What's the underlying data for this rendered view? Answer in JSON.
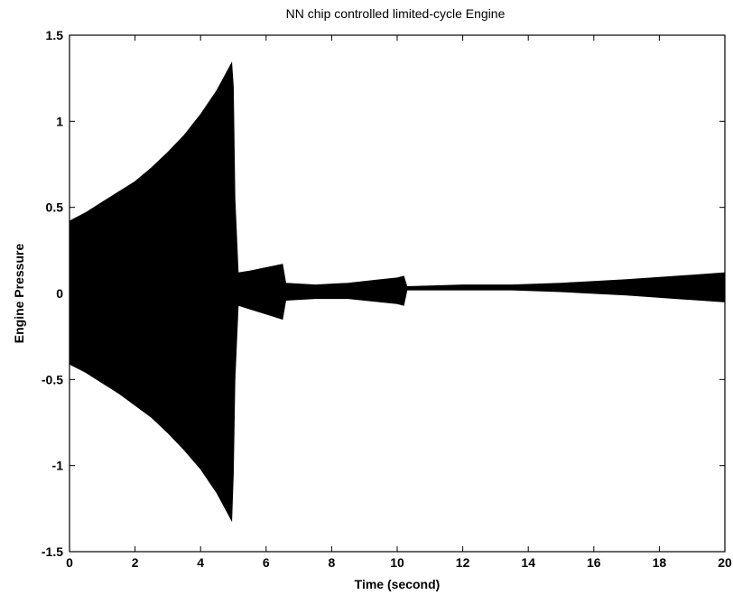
{
  "chart_data": {
    "type": "area",
    "title": "NN chip controlled limited-cycle Engine",
    "xlabel": "Time (second)",
    "ylabel": "Engine Pressure",
    "xlim": [
      0,
      20
    ],
    "ylim": [
      -1.5,
      1.5
    ],
    "xticks": [
      "0",
      "2",
      "4",
      "6",
      "8",
      "10",
      "12",
      "14",
      "16",
      "18",
      "20"
    ],
    "yticks": [
      "1.5",
      "1",
      "0.5",
      "0",
      "-0.5",
      "-1",
      "-1.5"
    ],
    "grid": false,
    "fill_color": "#000000",
    "series": [
      {
        "envelope": [
          {
            "x": 0.0,
            "upper": 0.42,
            "lower": -0.41
          },
          {
            "x": 0.5,
            "upper": 0.47,
            "lower": -0.46
          },
          {
            "x": 1.0,
            "upper": 0.53,
            "lower": -0.52
          },
          {
            "x": 1.5,
            "upper": 0.59,
            "lower": -0.58
          },
          {
            "x": 2.0,
            "upper": 0.65,
            "lower": -0.65
          },
          {
            "x": 2.5,
            "upper": 0.73,
            "lower": -0.72
          },
          {
            "x": 3.0,
            "upper": 0.82,
            "lower": -0.81
          },
          {
            "x": 3.5,
            "upper": 0.92,
            "lower": -0.91
          },
          {
            "x": 4.0,
            "upper": 1.04,
            "lower": -1.02
          },
          {
            "x": 4.5,
            "upper": 1.18,
            "lower": -1.16
          },
          {
            "x": 4.95,
            "upper": 1.34,
            "lower": -1.32
          },
          {
            "x": 5.0,
            "upper": 1.2,
            "lower": -1.05
          },
          {
            "x": 5.05,
            "upper": 0.55,
            "lower": -0.5
          },
          {
            "x": 5.15,
            "upper": 0.12,
            "lower": -0.07
          },
          {
            "x": 5.5,
            "upper": 0.13,
            "lower": -0.09
          },
          {
            "x": 6.0,
            "upper": 0.15,
            "lower": -0.12
          },
          {
            "x": 6.5,
            "upper": 0.17,
            "lower": -0.15
          },
          {
            "x": 6.6,
            "upper": 0.06,
            "lower": -0.04
          },
          {
            "x": 7.5,
            "upper": 0.05,
            "lower": -0.03
          },
          {
            "x": 8.5,
            "upper": 0.06,
            "lower": -0.03
          },
          {
            "x": 9.5,
            "upper": 0.08,
            "lower": -0.05
          },
          {
            "x": 10.0,
            "upper": 0.09,
            "lower": -0.06
          },
          {
            "x": 10.2,
            "upper": 0.1,
            "lower": -0.07
          },
          {
            "x": 10.3,
            "upper": 0.04,
            "lower": 0.02
          },
          {
            "x": 12.0,
            "upper": 0.05,
            "lower": 0.02
          },
          {
            "x": 13.5,
            "upper": 0.05,
            "lower": 0.02
          },
          {
            "x": 15.0,
            "upper": 0.06,
            "lower": 0.01
          },
          {
            "x": 17.0,
            "upper": 0.08,
            "lower": -0.01
          },
          {
            "x": 18.5,
            "upper": 0.1,
            "lower": -0.03
          },
          {
            "x": 20.0,
            "upper": 0.12,
            "lower": -0.05
          }
        ]
      }
    ]
  }
}
